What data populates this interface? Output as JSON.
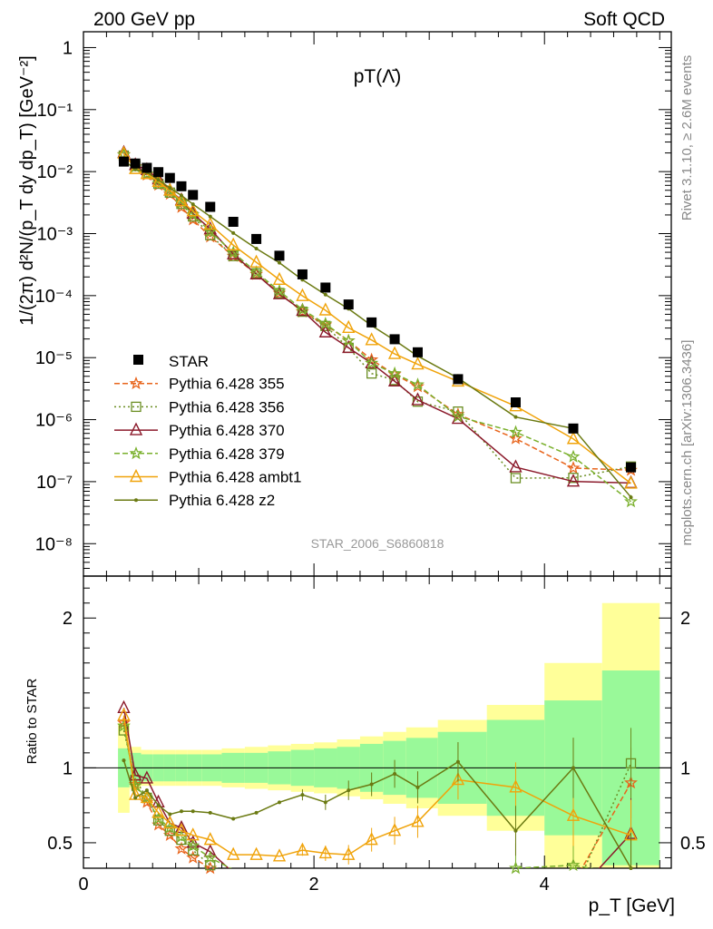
{
  "header": {
    "left": "200 GeV pp",
    "right": "Soft QCD"
  },
  "side_labels": {
    "rivet": "Rivet 3.1.10, ≥ 2.6M events",
    "mcplots": "mcplots.cern.ch [arXiv:1306.3436]"
  },
  "chart_data": {
    "type": "scatter",
    "title": "pT(Λ̄)",
    "watermark": "STAR_2006_S6860818",
    "xlabel": "p_T [GeV]",
    "ylabel": "1/(2π) d²N/(p_T dy dp_T) [GeV⁻²]",
    "ratio_ylabel": "Ratio to STAR",
    "xlim": [
      0,
      5.1
    ],
    "ylim": [
      3e-09,
      1.8
    ],
    "yscale": "log",
    "ratio_ylim": [
      0.33,
      2.28
    ],
    "x_ticks": [
      "0",
      "2",
      "4"
    ],
    "y_ticks": [
      "1",
      "10⁻¹",
      "10⁻²",
      "10⁻³",
      "10⁻⁴",
      "10⁻⁵",
      "10⁻⁶",
      "10⁻⁷",
      "10⁻⁸"
    ],
    "ratio_ticks": [
      "0.5",
      "1",
      "2"
    ],
    "legend_position": "lower-left",
    "x": [
      0.35,
      0.45,
      0.55,
      0.65,
      0.75,
      0.85,
      0.95,
      1.1,
      1.3,
      1.5,
      1.7,
      1.9,
      2.1,
      2.3,
      2.5,
      2.7,
      2.9,
      3.25,
      3.75,
      4.25,
      4.75
    ],
    "reference": {
      "name": "STAR",
      "values": [
        0.0145,
        0.0135,
        0.0115,
        0.0098,
        0.0079,
        0.0058,
        0.0042,
        0.0027,
        0.00155,
        0.00082,
        0.00044,
        0.00022,
        0.000135,
        7.2e-05,
        3.7e-05,
        1.98e-05,
        1.22e-05,
        4.5e-06,
        1.9e-06,
        7.2e-07,
        1.7e-07
      ],
      "band_inner": [
        0.13,
        0.1,
        0.09,
        0.09,
        0.09,
        0.09,
        0.09,
        0.09,
        0.1,
        0.1,
        0.11,
        0.12,
        0.13,
        0.14,
        0.16,
        0.18,
        0.2,
        0.24,
        0.32,
        0.45,
        0.65
      ],
      "band_outer": [
        0.3,
        0.14,
        0.12,
        0.12,
        0.12,
        0.12,
        0.12,
        0.12,
        0.13,
        0.14,
        0.15,
        0.16,
        0.17,
        0.19,
        0.21,
        0.24,
        0.27,
        0.32,
        0.42,
        0.7,
        1.1
      ]
    },
    "series": [
      {
        "name": "Pythia 6.428 355",
        "color": "#e8641b",
        "dash": "6,3",
        "marker": "star",
        "ratio": [
          1.3,
          0.89,
          0.77,
          0.62,
          0.55,
          0.46,
          0.4,
          0.33,
          0.28,
          0.27,
          0.25,
          0.25,
          0.25,
          0.26,
          0.25,
          0.27,
          0.28,
          0.27,
          0.26,
          0.23,
          0.9
        ]
      },
      {
        "name": "Pythia 6.428 356",
        "color": "#6b8e23",
        "dash": "2,3",
        "marker": "open-square",
        "ratio": [
          1.25,
          0.92,
          0.8,
          0.65,
          0.58,
          0.52,
          0.45,
          0.35,
          0.28,
          0.28,
          0.25,
          0.25,
          0.24,
          0.2,
          0.15,
          0.22,
          0.16,
          0.3,
          0.06,
          0.16,
          1.03
        ]
      },
      {
        "name": "Pythia 6.428 370",
        "color": "#8b1a2b",
        "dash": "",
        "marker": "open-triangle",
        "ratio": [
          1.4,
          0.95,
          0.93,
          0.77,
          0.63,
          0.6,
          0.5,
          0.44,
          0.3,
          0.27,
          0.24,
          0.26,
          0.19,
          0.2,
          0.22,
          0.21,
          0.17,
          0.23,
          0.09,
          0.14,
          0.56
        ]
      },
      {
        "name": "Pythia 6.428 379",
        "color": "#7ab02c",
        "dash": "6,3",
        "marker": "star",
        "ratio": [
          1.28,
          0.88,
          0.8,
          0.66,
          0.6,
          0.54,
          0.48,
          0.4,
          0.32,
          0.29,
          0.27,
          0.27,
          0.26,
          0.26,
          0.22,
          0.28,
          0.3,
          0.25,
          0.33,
          0.35,
          0.28
        ]
      },
      {
        "name": "Pythia 6.428 ambt1",
        "color": "#f0a30a",
        "dash": "",
        "marker": "open-triangle",
        "ratio": [
          1.35,
          0.82,
          0.8,
          0.7,
          0.63,
          0.58,
          0.55,
          0.52,
          0.42,
          0.42,
          0.41,
          0.45,
          0.43,
          0.42,
          0.52,
          0.58,
          0.64,
          0.92,
          0.87,
          0.68,
          0.55
        ]
      },
      {
        "name": "Pythia 6.428 z2",
        "color": "#6b7a12",
        "dash": "",
        "marker": "dot",
        "ratio": [
          1.05,
          0.8,
          0.85,
          0.75,
          0.69,
          0.71,
          0.71,
          0.7,
          0.66,
          0.7,
          0.77,
          0.82,
          0.77,
          0.85,
          0.89,
          0.96,
          0.87,
          1.04,
          0.58,
          1.0,
          0.33
        ]
      }
    ]
  }
}
